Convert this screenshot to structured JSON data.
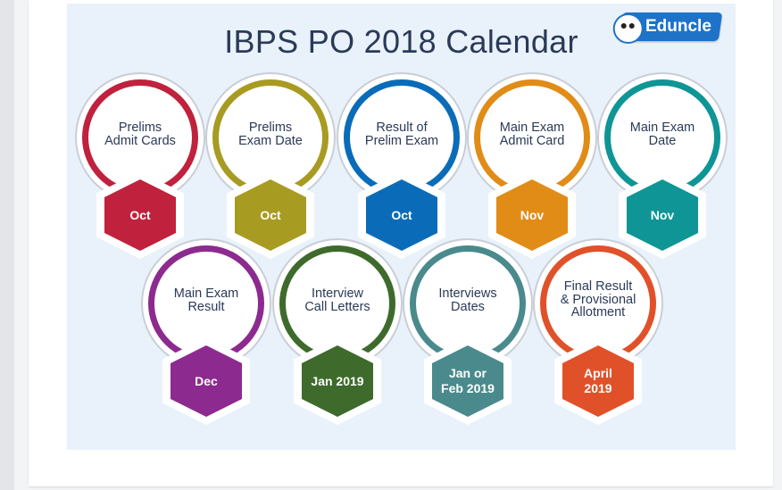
{
  "title": "IBPS PO 2018 Calendar",
  "logo": {
    "text": "Eduncle",
    "brand_color": "#1e73c8"
  },
  "items": [
    {
      "label": "Prelims\nAdmit Cards",
      "date": "Oct",
      "color": "#c0213d"
    },
    {
      "label": "Prelims\nExam Date",
      "date": "Oct",
      "color": "#a89b22"
    },
    {
      "label": "Result of\nPrelim Exam",
      "date": "Oct",
      "color": "#0a6cb8"
    },
    {
      "label": "Main Exam\nAdmit Card",
      "date": "Nov",
      "color": "#e08c17"
    },
    {
      "label": "Main Exam\nDate",
      "date": "Nov",
      "color": "#0f9595"
    },
    {
      "label": "Main Exam\nResult",
      "date": "Dec",
      "color": "#8d2a8f"
    },
    {
      "label": "Interview\nCall Letters",
      "date": "Jan 2019",
      "color": "#3e6b2c"
    },
    {
      "label": "Interviews\nDates",
      "date": "Jan or\nFeb 2019",
      "color": "#4a8a8c"
    },
    {
      "label": "Final Result\n& Provisional\nAllotment",
      "date": "April\n2019",
      "color": "#e0512a"
    }
  ]
}
